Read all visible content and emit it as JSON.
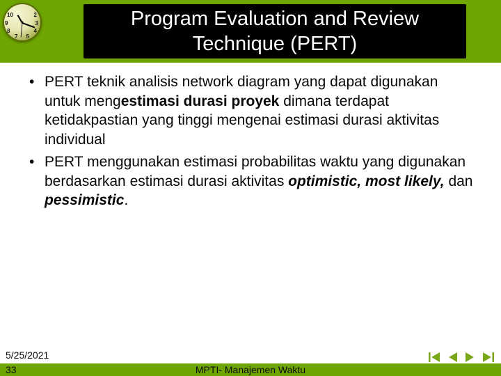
{
  "colors": {
    "header_bg": "#6ea500",
    "title_box_bg": "#000000",
    "title_text": "#ffffff",
    "body_text": "#080808",
    "nav_icon": "#7aa61a",
    "page_bg": "#ffffff"
  },
  "fonts": {
    "family": "Arial, sans-serif",
    "title_size_pt": 22,
    "body_size_pt": 16
  },
  "clock": {
    "numerals_visible": [
      "10",
      "2",
      "9",
      "3",
      "8",
      "4",
      "7",
      "5"
    ]
  },
  "title": "Program Evaluation and Review Technique (PERT)",
  "bullets": [
    {
      "segments": [
        {
          "text": "PERT teknik analisis network diagram yang dapat digunakan untuk meng",
          "style": "normal"
        },
        {
          "text": "estimasi durasi proyek",
          "style": "bold"
        },
        {
          "text": " dimana terdapat ketidakpastian yang tinggi mengenai estimasi durasi aktivitas individual",
          "style": "normal"
        }
      ]
    },
    {
      "segments": [
        {
          "text": "PERT menggunakan estimasi probabilitas waktu yang digunakan berdasarkan estimasi durasi aktivitas ",
          "style": "normal"
        },
        {
          "text": "optimistic, most likely,",
          "style": "bold-italic"
        },
        {
          "text": " dan ",
          "style": "normal"
        },
        {
          "text": "pessimistic",
          "style": "bold-italic"
        },
        {
          "text": ".",
          "style": "normal"
        }
      ]
    }
  ],
  "footer": {
    "date": "5/25/2021",
    "page_number": "33",
    "center_label": "MPTI- Manajemen Waktu"
  },
  "nav_icons": [
    "first",
    "prev",
    "next",
    "last"
  ]
}
